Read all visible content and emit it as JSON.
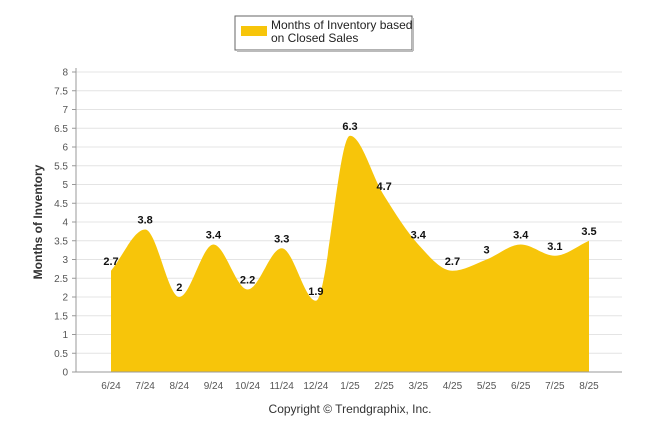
{
  "colors": {
    "area": "#f7c50a",
    "grid": "#e4e4e4",
    "axis": "#999999"
  },
  "legend_label_lines": [
    "Months of Inventory based",
    "on Closed Sales"
  ],
  "copyright": "Copyright © Trendgraphix, Inc.",
  "chart_data": {
    "type": "area",
    "categories": [
      "6/24",
      "7/24",
      "8/24",
      "9/24",
      "10/24",
      "11/24",
      "12/24",
      "1/25",
      "2/25",
      "3/25",
      "4/25",
      "5/25",
      "6/25",
      "7/25",
      "8/25"
    ],
    "series": [
      {
        "name": "Months of Inventory based on Closed Sales",
        "values": [
          2.7,
          3.8,
          2,
          3.4,
          2.2,
          3.3,
          1.9,
          6.3,
          4.7,
          3.4,
          2.7,
          3,
          3.4,
          3.1,
          3.5
        ]
      }
    ],
    "data_labels": [
      "2.7",
      "3.8",
      "2",
      "3.4",
      "2.2",
      "3.3",
      "1.9",
      "6.3",
      "4.7",
      "3.4",
      "2.7",
      "3",
      "3.4",
      "3.1",
      "3.5"
    ],
    "ylabel": "Months of Inventory",
    "ylim": [
      0,
      8
    ],
    "y_ticks": [
      "0",
      "0.5",
      "1",
      "1.5",
      "2",
      "2.5",
      "3",
      "3.5",
      "4",
      "4.5",
      "5",
      "5.5",
      "6",
      "6.5",
      "7",
      "7.5",
      "8"
    ],
    "grid": true,
    "legend_position": "top-center"
  }
}
